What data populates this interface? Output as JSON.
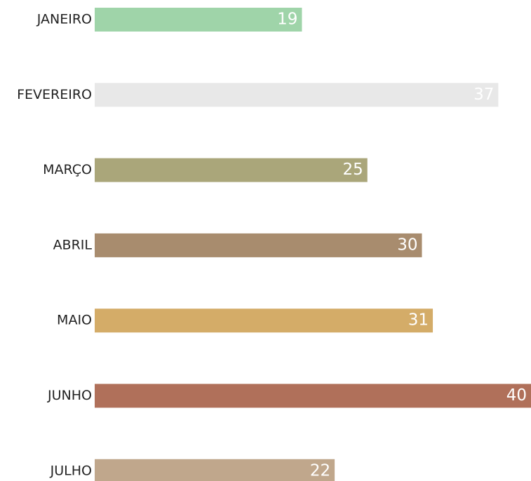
{
  "chart_data": {
    "type": "bar",
    "orientation": "horizontal",
    "categories": [
      "JANEIRO",
      "FEVEREIRO",
      "MARÇO",
      "ABRIL",
      "MAIO",
      "JUNHO",
      "JULHO"
    ],
    "values": [
      19,
      37,
      25,
      30,
      31,
      40,
      22
    ],
    "colors": [
      "#9fd4a9",
      "#e8e8e8",
      "#aaa67a",
      "#a88c6e",
      "#d4ac68",
      "#b0705a",
      "#c0a78c"
    ],
    "xlim": [
      0,
      40
    ]
  }
}
